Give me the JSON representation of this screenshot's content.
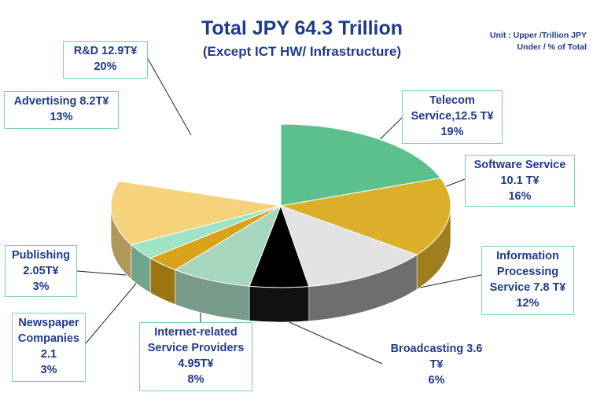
{
  "header": {
    "title": "Total JPY 64.3 Trillion",
    "subtitle": "(Except ICT HW/ Infrastructure)",
    "unit_line1": "Unit : Upper /Trillion JPY",
    "unit_line2": "Under / % of Total"
  },
  "chart_data": {
    "type": "pie",
    "title": "Total JPY 64.3 Trillion",
    "subtitle": "(Except ICT HW/ Infrastructure)",
    "unit_note": [
      "Unit : Upper /Trillion JPY",
      "Under / % of Total"
    ],
    "total": 64.3,
    "slices": [
      {
        "label": "Telecom Service",
        "value": 12.5,
        "percent": 19,
        "color": "#5cc08d",
        "label_lines": [
          "Telecom",
          "Service,12.5 T¥",
          "19%"
        ]
      },
      {
        "label": "Software Service",
        "value": 10.1,
        "percent": 16,
        "color": "#dcaf2b",
        "label_lines": [
          "Software Service",
          "10.1 T¥",
          "16%"
        ]
      },
      {
        "label": "Information Processing Service",
        "value": 7.8,
        "percent": 12,
        "color": "#e2e2e2",
        "label_lines": [
          "Information",
          "Processing",
          "Service 7.8 T¥",
          "12%"
        ]
      },
      {
        "label": "Broadcasting",
        "value": 3.6,
        "percent": 6,
        "color": "#000000",
        "label_lines": [
          "Broadcasting 3.6",
          "T¥",
          "6%"
        ]
      },
      {
        "label": "Internet-related Service Providers",
        "value": 4.95,
        "percent": 8,
        "color": "#a6d6bd",
        "label_lines": [
          "Internet-related",
          "Service Providers",
          "4.95T¥",
          "8%"
        ]
      },
      {
        "label": "Newspaper Companies",
        "value": 2.1,
        "percent": 3,
        "color": "#d9a21b",
        "label_lines": [
          "Newspaper",
          "Companies",
          "2.1",
          "3%"
        ]
      },
      {
        "label": "Publishing",
        "value": 2.05,
        "percent": 3,
        "color": "#9ee3c3",
        "label_lines": [
          "Publishing",
          "2.05T¥",
          "3%"
        ]
      },
      {
        "label": "Advertising",
        "value": 8.2,
        "percent": 13,
        "color": "#f6d27c",
        "label_lines": [
          "Advertising 8.2T¥",
          "13%"
        ]
      },
      {
        "label": "R&D",
        "value": 12.9,
        "percent": 20,
        "color": "#ffffff",
        "label_lines": [
          "R&D 12.9T¥",
          "20%"
        ]
      }
    ]
  }
}
